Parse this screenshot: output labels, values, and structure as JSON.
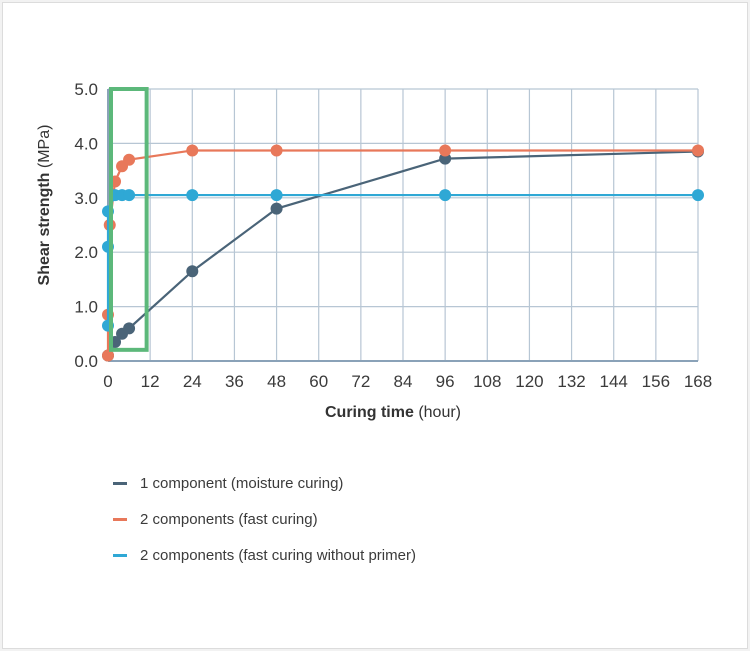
{
  "chart_data": {
    "type": "line",
    "title": "",
    "xlabel_bold": "Curing time",
    "xlabel_unit": "(hour)",
    "ylabel_bold": "Shear strength",
    "ylabel_unit": "(MPa)",
    "xlim": [
      0,
      168
    ],
    "ylim": [
      0,
      5
    ],
    "xticks": [
      "0",
      "12",
      "24",
      "36",
      "48",
      "60",
      "72",
      "84",
      "96",
      "108",
      "120",
      "132",
      "144",
      "156",
      "168"
    ],
    "yticks": [
      "0.0",
      "1.0",
      "2.0",
      "3.0",
      "4.0",
      "5.0"
    ],
    "grid": true,
    "highlight_box": {
      "x_range": [
        0,
        11
      ],
      "y_range": [
        0.15,
        5.0
      ],
      "color": "#5cb87a"
    },
    "series": [
      {
        "name": "1 component (moisture curing)",
        "color": "#4a6478",
        "points": [
          [
            0,
            0.1
          ],
          [
            2,
            0.35
          ],
          [
            4,
            0.5
          ],
          [
            6,
            0.6
          ],
          [
            24,
            1.65
          ],
          [
            48,
            2.8
          ],
          [
            96,
            3.72
          ],
          [
            168,
            3.85
          ]
        ]
      },
      {
        "name": "2 components (fast curing)",
        "color": "#e8785a",
        "points": [
          [
            0,
            0.1
          ],
          [
            0,
            0.85
          ],
          [
            0.5,
            2.5
          ],
          [
            2,
            3.3
          ],
          [
            4,
            3.58
          ],
          [
            6,
            3.7
          ],
          [
            24,
            3.87
          ],
          [
            48,
            3.87
          ],
          [
            96,
            3.87
          ],
          [
            168,
            3.87
          ]
        ]
      },
      {
        "name": "2 components (fast curing without primer)",
        "color": "#2fa8d5",
        "points": [
          [
            0,
            0.65
          ],
          [
            0,
            2.1
          ],
          [
            0,
            2.75
          ],
          [
            2,
            3.05
          ],
          [
            4,
            3.05
          ],
          [
            6,
            3.05
          ],
          [
            24,
            3.05
          ],
          [
            48,
            3.05
          ],
          [
            96,
            3.05
          ],
          [
            168,
            3.05
          ]
        ]
      }
    ],
    "legend_position": "bottom-left"
  }
}
